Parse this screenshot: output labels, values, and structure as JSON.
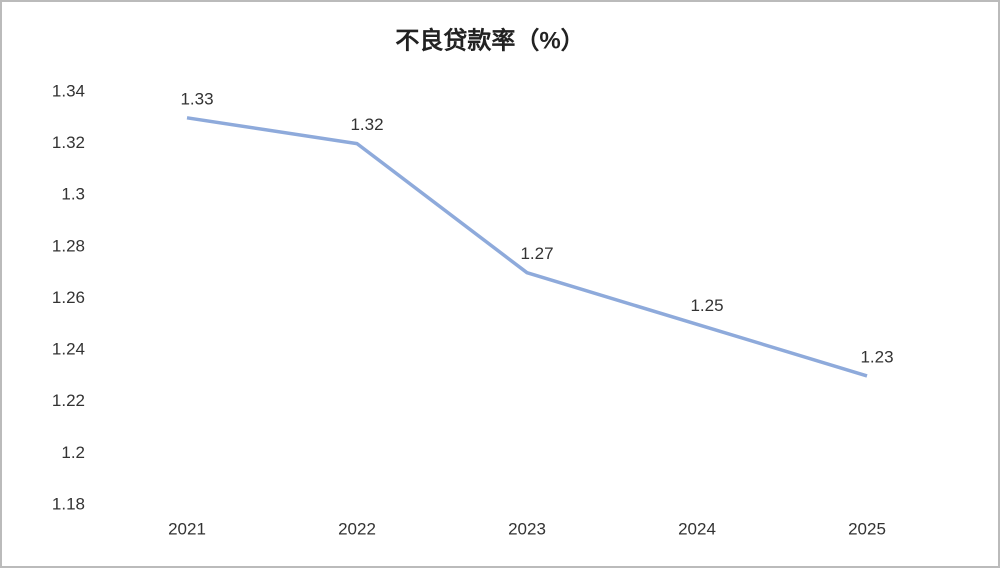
{
  "chart_data": {
    "type": "line",
    "title": "不良贷款率（%）",
    "categories": [
      "2021",
      "2022",
      "2023",
      "2024",
      "2025"
    ],
    "series": [
      {
        "name": "不良贷款率",
        "color": "#8eaadb",
        "values": [
          1.33,
          1.32,
          1.27,
          1.25,
          1.23
        ]
      }
    ],
    "ylim": [
      1.18,
      1.34
    ],
    "yticks": [
      1.18,
      1.2,
      1.22,
      1.24,
      1.26,
      1.28,
      1.3,
      1.32,
      1.34
    ],
    "grid": false
  }
}
